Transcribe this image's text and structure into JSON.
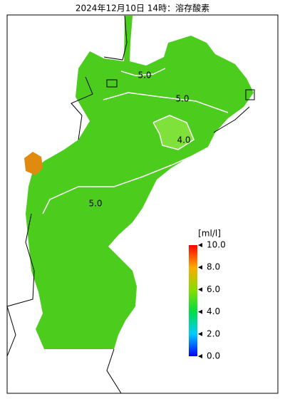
{
  "header": {
    "title": "2024年12月10日 14時：溶存酸素"
  },
  "contours": [
    {
      "label": "5.0"
    },
    {
      "label": "5.0"
    },
    {
      "label": "4.0"
    },
    {
      "label": "5.0"
    }
  ],
  "colorbar": {
    "unit": "[ml/l]",
    "ticks": [
      "10.0",
      "8.0",
      "6.0",
      "4.0",
      "2.0",
      "0.0"
    ]
  }
}
